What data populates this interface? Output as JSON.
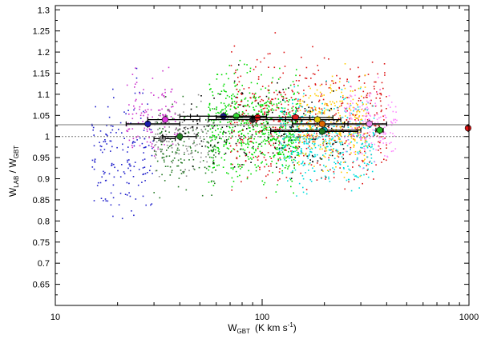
{
  "chart_data": {
    "type": "scatter",
    "xlabel": {
      "main": "W",
      "sub": "GBT",
      "unit": "(K km s",
      "exp": "-1",
      "close": ")"
    },
    "ylabel": {
      "main": "W",
      "sub1": "LAB",
      "sep": " / W",
      "sub2": "GBT"
    },
    "x_scale": "log",
    "xlim": [
      10,
      1000
    ],
    "ylim": [
      0.6,
      1.31
    ],
    "x_ticks": [
      {
        "value": 10,
        "label": "10"
      },
      {
        "value": 100,
        "label": "100"
      },
      {
        "value": 1000,
        "label": "1000"
      }
    ],
    "y_ticks": [
      {
        "value": 0.65,
        "label": "0.65"
      },
      {
        "value": 0.7,
        "label": "0.7"
      },
      {
        "value": 0.75,
        "label": "0.75"
      },
      {
        "value": 0.8,
        "label": "0.8"
      },
      {
        "value": 0.85,
        "label": "0.85"
      },
      {
        "value": 0.9,
        "label": "0.9"
      },
      {
        "value": 0.95,
        "label": "0.95"
      },
      {
        "value": 1.0,
        "label": "1"
      },
      {
        "value": 1.05,
        "label": "1.05"
      },
      {
        "value": 1.1,
        "label": "1.1"
      },
      {
        "value": 1.15,
        "label": "1.15"
      },
      {
        "value": 1.2,
        "label": "1.2"
      },
      {
        "value": 1.25,
        "label": "1.25"
      },
      {
        "value": 1.3,
        "label": "1.3"
      }
    ],
    "reference_lines": [
      {
        "y": 1.028,
        "style": "solid",
        "color": "#777777"
      },
      {
        "y": 1.0,
        "style": "dotted",
        "color": "#777777"
      }
    ],
    "grid": false,
    "scatter_clouds": [
      {
        "color": "#00dd00",
        "x_range": [
          55,
          150
        ],
        "y_center": 1.02,
        "y_spread": 0.06,
        "count": 650
      },
      {
        "color": "#dd1111",
        "x_range": [
          70,
          400
        ],
        "y_center": 1.04,
        "y_spread": 0.07,
        "count": 550
      },
      {
        "color": "#00dddd",
        "x_range": [
          120,
          350
        ],
        "y_center": 0.99,
        "y_spread": 0.05,
        "count": 420
      },
      {
        "color": "#ffcc00",
        "x_range": [
          150,
          320
        ],
        "y_center": 1.03,
        "y_spread": 0.05,
        "count": 300
      },
      {
        "color": "#ff88ff",
        "x_range": [
          250,
          450
        ],
        "y_center": 1.03,
        "y_spread": 0.04,
        "count": 160
      },
      {
        "color": "#2222cc",
        "x_range": [
          15,
          30
        ],
        "y_center": 0.96,
        "y_spread": 0.07,
        "count": 160
      },
      {
        "color": "#cc33cc",
        "x_range": [
          22,
          40
        ],
        "y_center": 1.05,
        "y_spread": 0.05,
        "count": 120
      },
      {
        "color": "#227722",
        "x_range": [
          30,
          60
        ],
        "y_center": 0.97,
        "y_spread": 0.05,
        "count": 160
      },
      {
        "color": "#888888",
        "x_range": [
          30,
          55
        ],
        "y_center": 0.99,
        "y_spread": 0.04,
        "count": 90
      },
      {
        "color": "#000000",
        "x_range": [
          40,
          250
        ],
        "y_center": 1.02,
        "y_spread": 0.05,
        "count": 160
      }
    ],
    "binned_means": [
      {
        "x": 28,
        "y": 1.03,
        "x_low": 22,
        "x_high": 40,
        "color": "#1a1aa8"
      },
      {
        "x": 34,
        "y": 1.04,
        "x_low": 28,
        "x_high": 50,
        "color": "#dd33dd"
      },
      {
        "x": 33,
        "y": 0.995,
        "x_low": 30,
        "x_high": 38,
        "color": "#999999"
      },
      {
        "x": 40,
        "y": 1.0,
        "x_low": 33,
        "x_high": 48,
        "color": "#1f7a1f"
      },
      {
        "x": 65,
        "y": 1.048,
        "x_low": 40,
        "x_high": 95,
        "color": "#1a1a88"
      },
      {
        "x": 75,
        "y": 1.048,
        "x_low": 45,
        "x_high": 105,
        "color": "#33dd33"
      },
      {
        "x": 90,
        "y": 1.04,
        "x_low": 55,
        "x_high": 140,
        "color": "#222222"
      },
      {
        "x": 95,
        "y": 1.045,
        "x_low": 60,
        "x_high": 170,
        "color": "#dd1111"
      },
      {
        "x": 145,
        "y": 1.045,
        "x_low": 90,
        "x_high": 220,
        "color": "#dd2222"
      },
      {
        "x": 185,
        "y": 1.04,
        "x_low": 130,
        "x_high": 240,
        "color": "#ddcc00"
      },
      {
        "x": 195,
        "y": 1.03,
        "x_low": 140,
        "x_high": 260,
        "color": "#dd6600"
      },
      {
        "x": 200,
        "y": 1.015,
        "x_low": 110,
        "x_high": 300,
        "color": "#00aaaa"
      },
      {
        "x": 195,
        "y": 1.012,
        "x_low": 110,
        "x_high": 290,
        "color": "#1f7a1f"
      },
      {
        "x": 330,
        "y": 1.03,
        "x_low": 250,
        "x_high": 400,
        "color": "#ee88ee"
      },
      {
        "x": 370,
        "y": 1.015,
        "x_low": 355,
        "x_high": 385,
        "color": "#22bb22"
      },
      {
        "x": 990,
        "y": 1.02,
        "x_low": 970,
        "x_high": 1010,
        "color": "#dd1111"
      }
    ]
  }
}
